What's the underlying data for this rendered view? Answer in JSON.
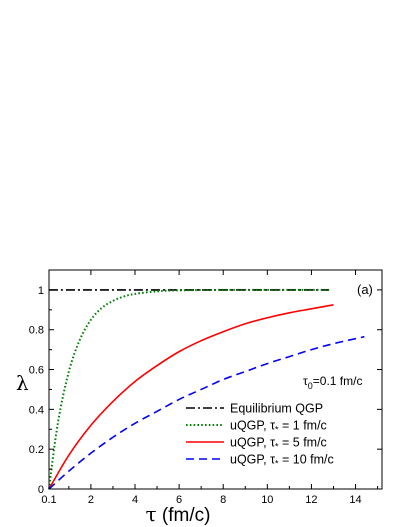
{
  "chart_data": {
    "type": "line",
    "panel_label": "(a)",
    "annotation": {
      "text": "τ",
      "sub": "0",
      "rest": "=0.1 fm/c"
    },
    "xlabel": {
      "symbol": "τ",
      "unit": " (fm/c)"
    },
    "ylabel": "λ",
    "xlim": [
      0.1,
      15.2
    ],
    "ylim": [
      0,
      1.1
    ],
    "x_ticks": [
      0.1,
      2,
      4,
      6,
      8,
      10,
      12,
      14
    ],
    "x_tick_labels": [
      "0.1",
      "2",
      "4",
      "6",
      "8",
      "10",
      "12",
      "14"
    ],
    "y_ticks": [
      0,
      0.2,
      0.4,
      0.6,
      0.8,
      1
    ],
    "y_tick_labels": [
      "0",
      "0.2",
      "0.4",
      "0.6",
      "0.8",
      "1"
    ],
    "legend_position": "bottom-right",
    "series": [
      {
        "name": "Equilibrium QGP",
        "label_parts": [
          "Equilibrium QGP"
        ],
        "color": "#000000",
        "style": "dash-dot",
        "points": [
          [
            0.1,
            1.0
          ],
          [
            12.8,
            1.0
          ]
        ]
      },
      {
        "name": "uQGP, τ* = 1 fm/c",
        "label_parts": [
          "uQGP, τ",
          "*",
          " = 1 fm/c"
        ],
        "color": "#008000",
        "style": "dotted",
        "points": [
          [
            0.1,
            0.0
          ],
          [
            0.5,
            0.33
          ],
          [
            1.0,
            0.59
          ],
          [
            1.5,
            0.75
          ],
          [
            2.0,
            0.85
          ],
          [
            2.5,
            0.91
          ],
          [
            3.0,
            0.945
          ],
          [
            3.5,
            0.967
          ],
          [
            4.0,
            0.98
          ],
          [
            5.0,
            0.993
          ],
          [
            6.0,
            0.998
          ],
          [
            8.0,
            1.0
          ],
          [
            10.0,
            1.0
          ],
          [
            12.8,
            1.0
          ]
        ]
      },
      {
        "name": "uQGP, τ* = 5 fm/c",
        "label_parts": [
          "uQGP, τ",
          "*",
          " = 5 fm/c"
        ],
        "color": "#ff0000",
        "style": "solid",
        "points": [
          [
            0.1,
            0.0
          ],
          [
            1.0,
            0.17
          ],
          [
            2.0,
            0.32
          ],
          [
            3.0,
            0.44
          ],
          [
            4.0,
            0.54
          ],
          [
            5.0,
            0.62
          ],
          [
            6.0,
            0.69
          ],
          [
            7.0,
            0.745
          ],
          [
            8.0,
            0.79
          ],
          [
            9.0,
            0.83
          ],
          [
            10.0,
            0.86
          ],
          [
            11.0,
            0.885
          ],
          [
            12.0,
            0.905
          ],
          [
            13.0,
            0.925
          ]
        ]
      },
      {
        "name": "uQGP, τ* = 10 fm/c",
        "label_parts": [
          "uQGP, τ",
          "*",
          " = 10 fm/c"
        ],
        "color": "#0000ff",
        "style": "dashed",
        "points": [
          [
            0.1,
            0.0
          ],
          [
            1.0,
            0.09
          ],
          [
            2.0,
            0.18
          ],
          [
            3.0,
            0.26
          ],
          [
            4.0,
            0.33
          ],
          [
            5.0,
            0.39
          ],
          [
            6.0,
            0.45
          ],
          [
            7.0,
            0.5
          ],
          [
            8.0,
            0.55
          ],
          [
            9.0,
            0.59
          ],
          [
            10.0,
            0.63
          ],
          [
            11.0,
            0.665
          ],
          [
            12.0,
            0.7
          ],
          [
            13.0,
            0.73
          ],
          [
            14.4,
            0.765
          ]
        ]
      }
    ]
  }
}
